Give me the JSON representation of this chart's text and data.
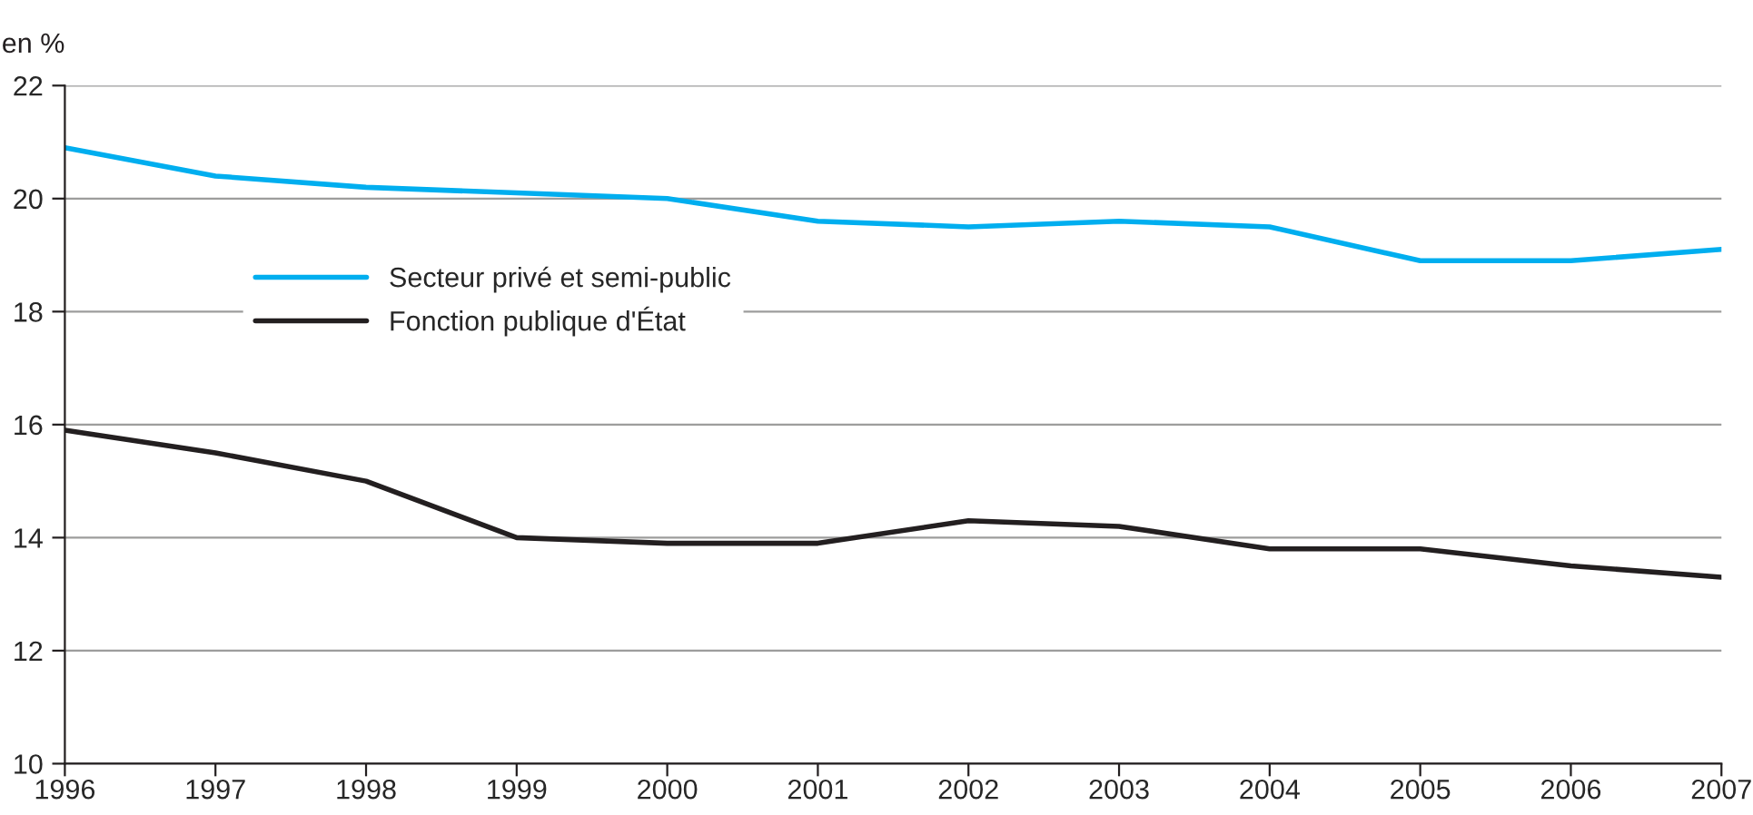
{
  "chart_data": {
    "type": "line",
    "ylabel": "en %",
    "x": [
      1996,
      1997,
      1998,
      1999,
      2000,
      2001,
      2002,
      2003,
      2004,
      2005,
      2006,
      2007
    ],
    "series": [
      {
        "name": "Secteur privé et semi-public",
        "color": "#00aeef",
        "values": [
          20.9,
          20.4,
          20.2,
          20.1,
          20.0,
          19.6,
          19.5,
          19.6,
          19.5,
          18.9,
          18.9,
          19.1
        ]
      },
      {
        "name": "Fonction publique d'État",
        "color": "#231f20",
        "values": [
          15.9,
          15.5,
          15.0,
          14.0,
          13.9,
          13.9,
          14.3,
          14.2,
          13.8,
          13.8,
          13.5,
          13.3
        ]
      }
    ],
    "xlim": [
      1996,
      2007
    ],
    "xticks": [
      1996,
      1997,
      1998,
      1999,
      2000,
      2001,
      2002,
      2003,
      2004,
      2005,
      2006,
      2007
    ],
    "ylim": [
      10,
      22
    ],
    "yticks": [
      10,
      12,
      14,
      16,
      18,
      20,
      22
    ],
    "grid": "y",
    "legend": "top left",
    "marker": "none",
    "line_style": "solid"
  }
}
